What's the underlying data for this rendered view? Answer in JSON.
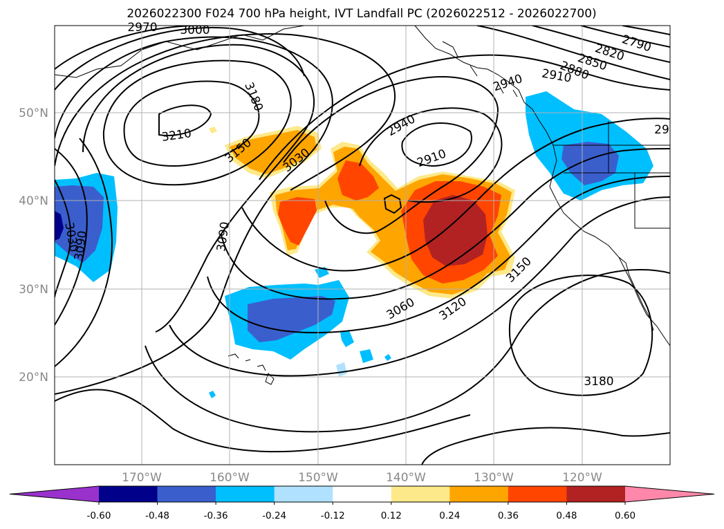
{
  "title": "2026022300 F024 700 hPa height, IVT Landfall PC (2026022512 - 2026022700)",
  "map": {
    "lat_labels": [
      "50°N",
      "40°N",
      "30°N",
      "20°N"
    ],
    "lon_labels": [
      "170°W",
      "160°W",
      "150°W",
      "140°W",
      "130°W",
      "120°W"
    ]
  },
  "contour_labels": [
    {
      "text": "2970"
    },
    {
      "text": "3000"
    },
    {
      "text": "3180"
    },
    {
      "text": "3210"
    },
    {
      "text": "3150"
    },
    {
      "text": "3030"
    },
    {
      "text": "2940"
    },
    {
      "text": "2910"
    },
    {
      "text": "3090"
    },
    {
      "text": "3030"
    },
    {
      "text": "3090"
    },
    {
      "text": "3060"
    },
    {
      "text": "3120"
    },
    {
      "text": "3150"
    },
    {
      "text": "3180"
    },
    {
      "text": "2940"
    },
    {
      "text": "2910"
    },
    {
      "text": "2880"
    },
    {
      "text": "2850"
    },
    {
      "text": "2820"
    },
    {
      "text": "2790"
    },
    {
      "text": "29"
    }
  ],
  "colorbar": {
    "colors": [
      "#9932cc",
      "#00008b",
      "#3a5fcd",
      "#00bfff",
      "#b0e2ff",
      "#ffffff",
      "#fde98a",
      "#ffa500",
      "#ff4500",
      "#b22222",
      "#ff88aa"
    ],
    "labels": [
      "-0.60",
      "-0.48",
      "-0.36",
      "-0.24",
      "-0.12",
      "0.12",
      "0.24",
      "0.36",
      "0.48",
      "0.60"
    ]
  }
}
